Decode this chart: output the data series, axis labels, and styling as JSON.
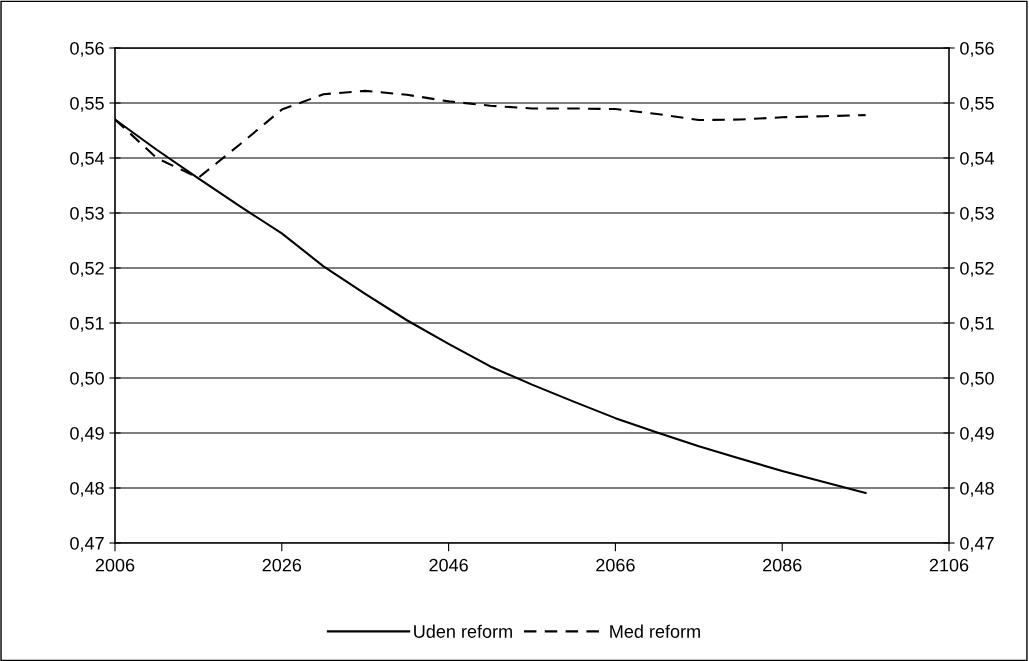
{
  "chart_data": {
    "type": "line",
    "x": [
      2006,
      2011,
      2016,
      2021,
      2026,
      2031,
      2036,
      2041,
      2046,
      2051,
      2056,
      2061,
      2066,
      2071,
      2076,
      2081,
      2086,
      2091,
      2096
    ],
    "series": [
      {
        "name": "Uden reform",
        "color": "#000000",
        "line_style": "solid",
        "values": [
          0.547,
          0.5415,
          0.5363,
          0.5312,
          0.5263,
          0.5203,
          0.5153,
          0.5105,
          0.5062,
          0.5021,
          0.4988,
          0.4957,
          0.4927,
          0.4901,
          0.4876,
          0.4853,
          0.4831,
          0.4811,
          0.4791
        ]
      },
      {
        "name": "Med reform",
        "color": "#000000",
        "line_style": "dashed",
        "values": [
          0.547,
          0.54,
          0.5364,
          0.5425,
          0.5488,
          0.5516,
          0.5522,
          0.5515,
          0.5503,
          0.5495,
          0.549,
          0.549,
          0.5489,
          0.548,
          0.5469,
          0.547,
          0.5474,
          0.5476,
          0.5478
        ]
      }
    ],
    "xlim": [
      2006,
      2106
    ],
    "xticks": [
      2006,
      2026,
      2046,
      2066,
      2086,
      2106
    ],
    "ylim": [
      0.47,
      0.56
    ],
    "yticks": [
      {
        "value": 0.47,
        "label": "0,47"
      },
      {
        "value": 0.48,
        "label": "0,48"
      },
      {
        "value": 0.49,
        "label": "0,49"
      },
      {
        "value": 0.5,
        "label": "0,50"
      },
      {
        "value": 0.51,
        "label": "0,51"
      },
      {
        "value": 0.52,
        "label": "0,52"
      },
      {
        "value": 0.53,
        "label": "0,53"
      },
      {
        "value": 0.54,
        "label": "0,54"
      },
      {
        "value": 0.55,
        "label": "0,55"
      },
      {
        "value": 0.56,
        "label": "0,56"
      }
    ],
    "y2lim": [
      0.47,
      0.56
    ],
    "y2ticks": [
      {
        "value": 0.47,
        "label": "0,47"
      },
      {
        "value": 0.48,
        "label": "0,48"
      },
      {
        "value": 0.49,
        "label": "0,49"
      },
      {
        "value": 0.5,
        "label": "0,50"
      },
      {
        "value": 0.51,
        "label": "0,51"
      },
      {
        "value": 0.52,
        "label": "0,52"
      },
      {
        "value": 0.53,
        "label": "0,53"
      },
      {
        "value": 0.54,
        "label": "0,54"
      },
      {
        "value": 0.55,
        "label": "0,55"
      },
      {
        "value": 0.56,
        "label": "0,56"
      }
    ],
    "grid": "y",
    "legend": "bottom",
    "marker": "none"
  }
}
